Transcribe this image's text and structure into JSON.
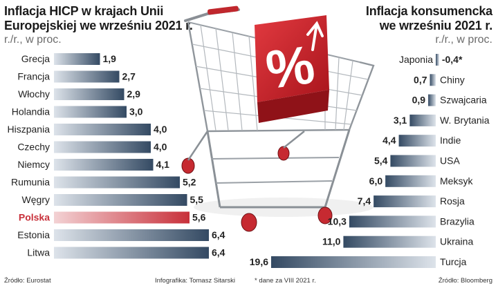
{
  "left_panel": {
    "title_line1": "Inflacja HICP w krajach Unii",
    "title_line2": "Europejskiej we wrześniu 2021 r.",
    "subtitle": "r./r., w proc.",
    "source": "Źródło: Eurostat"
  },
  "right_panel": {
    "title_line1": "Inflacja konsumencka",
    "title_line2": "we wrześniu 2021 r.",
    "subtitle": "r./r., w proc.",
    "source": "Źródło: Bloomberg"
  },
  "credit": "Infografika: Tomasz Sitarski",
  "note": "* dane za VIII 2021 r.",
  "colors": {
    "bar_dark": "#344a63",
    "bar_light": "#dde3ea",
    "highlight_dark": "#c8303a",
    "highlight_light": "#f3d2d4",
    "cart_red": "#d1272f"
  },
  "chart_data": [
    {
      "type": "bar",
      "orientation": "horizontal",
      "categories": [
        "Grecja",
        "Francja",
        "Włochy",
        "Holandia",
        "Hiszpania",
        "Czechy",
        "Niemcy",
        "Rumunia",
        "Węgry",
        "Polska",
        "Estonia",
        "Litwa"
      ],
      "values": [
        1.9,
        2.7,
        2.9,
        3.0,
        4.0,
        4.0,
        4.1,
        5.2,
        5.5,
        5.6,
        6.4,
        6.4
      ],
      "value_labels": [
        "1,9",
        "2,7",
        "2,9",
        "3,0",
        "4,0",
        "4,0",
        "4,1",
        "5,2",
        "5,5",
        "5,6",
        "6,4",
        "6,4"
      ],
      "highlight": "Polska",
      "xlim": [
        0,
        6.4
      ]
    },
    {
      "type": "bar",
      "orientation": "horizontal",
      "direction": "right-to-left",
      "categories": [
        "Japonia",
        "Chiny",
        "Szwajcaria",
        "W. Brytania",
        "Indie",
        "USA",
        "Meksyk",
        "Rosja",
        "Brazylia",
        "Ukraina",
        "Turcja"
      ],
      "values": [
        -0.4,
        0.7,
        0.9,
        3.1,
        4.4,
        5.4,
        6.0,
        7.4,
        10.3,
        11.0,
        19.6
      ],
      "value_labels": [
        "-0,4*",
        "0,7",
        "0,9",
        "3,1",
        "4,4",
        "5,4",
        "6,0",
        "7,4",
        "10,3",
        "11,0",
        "19,6"
      ],
      "xlim": [
        -0.4,
        19.6
      ]
    }
  ],
  "illustration": {
    "badge_symbol": "%"
  }
}
